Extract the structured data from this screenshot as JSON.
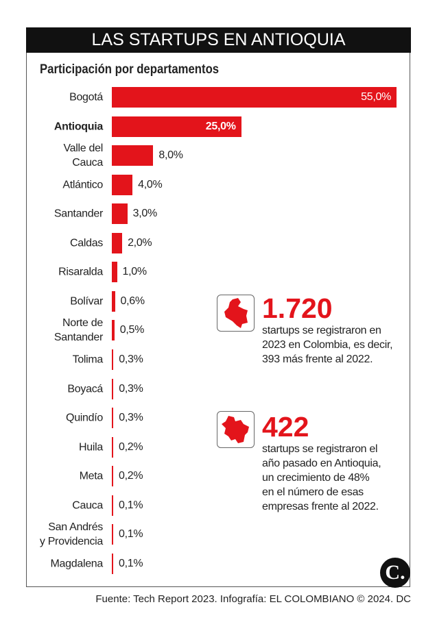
{
  "chart_data": {
    "type": "bar",
    "orientation": "horizontal",
    "title": "LAS STARTUPS EN ANTIOQUIA",
    "subtitle": "Participación por departamentos",
    "categories": [
      "Bogotá",
      "Antioquia",
      "Valle del\nCauca",
      "Atlántico",
      "Santander",
      "Caldas",
      "Risaralda",
      "Bolívar",
      "Norte de\nSantander",
      "Tolima",
      "Boyacá",
      "Quindío",
      "Huila",
      "Meta",
      "Cauca",
      "San Andrés\ny Providencia",
      "Magdalena"
    ],
    "values": [
      55,
      25,
      8,
      4,
      3,
      2,
      1,
      0.6,
      0.5,
      0.3,
      0.3,
      0.3,
      0.2,
      0.2,
      0.1,
      0.1,
      0.1
    ],
    "value_labels": [
      "55,0%",
      "25,0%",
      "8,0%",
      "4,0%",
      "3,0%",
      "2,0%",
      "1,0%",
      "0,6%",
      "0,5%",
      "0,3%",
      "0,3%",
      "0,3%",
      "0,2%",
      "0,2%",
      "0,1%",
      "0,1%",
      "0,1%"
    ],
    "color": "#e3141b",
    "highlight_index": 1,
    "xlim": [
      0,
      55
    ]
  },
  "callouts": [
    {
      "number": "1.720",
      "text": "startups se registraron en\n2023 en Colombia, es decir,\n393 más frente al 2022."
    },
    {
      "number": "422",
      "text": "startups se registraron el\naño pasado en Antioquia,\nun crecimiento de 48%\nen el número de esas\nempresas frente al 2022."
    }
  ],
  "logo": "C.",
  "source": "Fuente: Tech Report 2023. Infografía: EL COLOMBIANO © 2024. DC"
}
